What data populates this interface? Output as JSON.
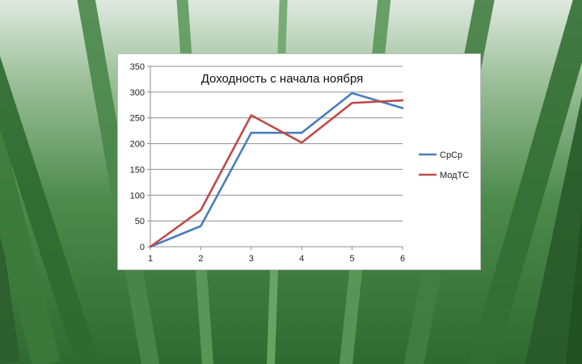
{
  "chart_data": {
    "type": "line",
    "title": "Доходность с начала ноября",
    "x": [
      1,
      2,
      3,
      4,
      5,
      6
    ],
    "ylim": [
      0,
      350
    ],
    "yticks": [
      0,
      50,
      100,
      150,
      200,
      250,
      300,
      350
    ],
    "grid": "horizontal",
    "legend_position": "right",
    "series": [
      {
        "name": "СрСр",
        "color": "#4a7ebb",
        "values": [
          0,
          40,
          221,
          221,
          298,
          269
        ]
      },
      {
        "name": "МодТС",
        "color": "#be4b48",
        "values": [
          0,
          71,
          255,
          202,
          279,
          284
        ]
      }
    ]
  }
}
